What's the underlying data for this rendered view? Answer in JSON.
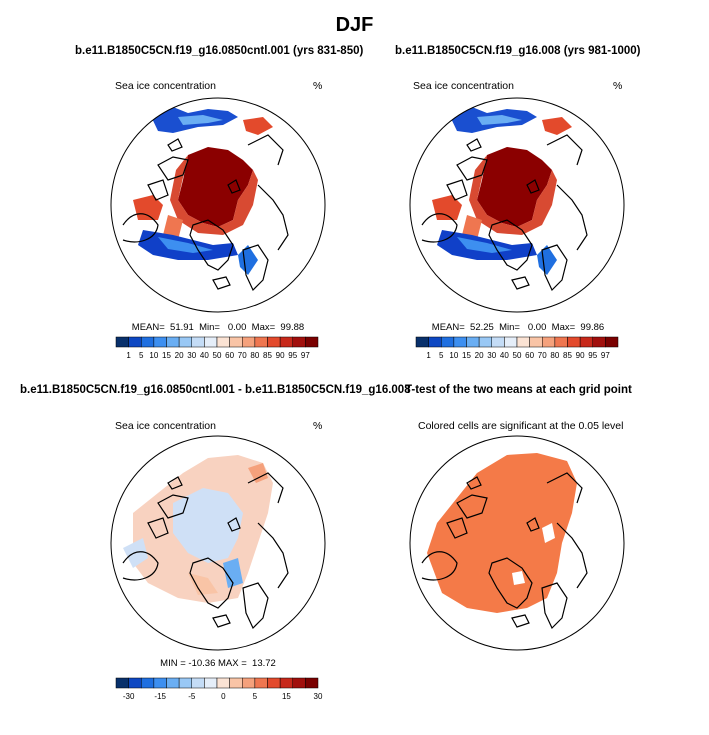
{
  "page": {
    "title": "DJF"
  },
  "colors": {
    "ice_scale": [
      "#08306b",
      "#0d47c2",
      "#1f6fe0",
      "#3d8ff0",
      "#6aaef3",
      "#99c8f5",
      "#c4dcf6",
      "#e5eef9",
      "#fbe3d4",
      "#f9c4a6",
      "#f5a17c",
      "#ef7650",
      "#e34a2c",
      "#c7281a",
      "#a10f0c",
      "#7a0000"
    ],
    "diff_scale": [
      "#08306b",
      "#0d47c2",
      "#1f6fe0",
      "#3d8ff0",
      "#6aaef3",
      "#99c8f5",
      "#c4dcf6",
      "#e5eef9",
      "#fbe3d4",
      "#f9c4a6",
      "#f5a17c",
      "#ef7650",
      "#e34a2c",
      "#c7281a",
      "#a10f0c",
      "#7a0000"
    ],
    "ice_core": "#8b0000",
    "ice_edge": "#d84a32",
    "ice_low": "#1040c8",
    "diff_pos": "#f8d2c0",
    "diff_neg": "#cfe0f6",
    "significant": "#f47a48"
  },
  "panels": [
    {
      "title": "b.e11.B1850C5CN.f19_g16.0850cntl.001 (yrs 831-850)",
      "variable": "Sea ice concentration",
      "units": "%",
      "stats": "MEAN=  51.91  Min=   0.00  Max=  99.88"
    },
    {
      "title": "b.e11.B1850C5CN.f19_g16.008 (yrs 981-1000)",
      "variable": "Sea ice concentration",
      "units": "%",
      "stats": "MEAN=  52.25  Min=   0.00  Max=  99.86"
    },
    {
      "title": "b.e11.B1850C5CN.f19_g16.0850cntl.001 - b.e11.B1850C5CN.f19_g16.008",
      "variable": "Sea ice concentration",
      "units": "%",
      "stats": "MIN = -10.36 MAX =  13.72"
    },
    {
      "title": "T-test of the two means at each grid point",
      "variable": "Colored cells are significant at the 0.05 level"
    }
  ],
  "chart_data": [
    {
      "type": "heatmap",
      "projection": "north-polar-stereographic",
      "title": "b.e11.B1850C5CN.f19_g16.0850cntl.001 (yrs 831-850)",
      "variable": "Sea ice concentration",
      "units": "%",
      "mean": 51.91,
      "min": 0.0,
      "max": 99.88,
      "colorbar_levels": [
        1,
        5,
        10,
        15,
        20,
        30,
        40,
        50,
        60,
        70,
        80,
        85,
        90,
        95,
        97
      ],
      "colorbar_labels": [
        "1",
        "5",
        "10",
        "15",
        "20",
        "30",
        "40",
        "50",
        "60",
        "70",
        "80",
        "85",
        "90",
        "95",
        "97"
      ]
    },
    {
      "type": "heatmap",
      "projection": "north-polar-stereographic",
      "title": "b.e11.B1850C5CN.f19_g16.008 (yrs 981-1000)",
      "variable": "Sea ice concentration",
      "units": "%",
      "mean": 52.25,
      "min": 0.0,
      "max": 99.86,
      "colorbar_levels": [
        1,
        5,
        10,
        15,
        20,
        30,
        40,
        50,
        60,
        70,
        80,
        85,
        90,
        95,
        97
      ],
      "colorbar_labels": [
        "1",
        "5",
        "10",
        "15",
        "20",
        "30",
        "40",
        "50",
        "60",
        "70",
        "80",
        "85",
        "90",
        "95",
        "97"
      ]
    },
    {
      "type": "heatmap",
      "projection": "north-polar-stereographic",
      "title": "b.e11.B1850C5CN.f19_g16.0850cntl.001 - b.e11.B1850C5CN.f19_g16.008",
      "variable": "Sea ice concentration",
      "units": "%",
      "min": -10.36,
      "max": 13.72,
      "colorbar_labels": [
        "-30",
        "-15",
        "-5",
        "0",
        "5",
        "15",
        "30"
      ]
    },
    {
      "type": "heatmap",
      "projection": "north-polar-stereographic",
      "title": "T-test of the two means at each grid point",
      "note": "Colored cells are significant at the 0.05 level",
      "significance_level": 0.05
    }
  ]
}
